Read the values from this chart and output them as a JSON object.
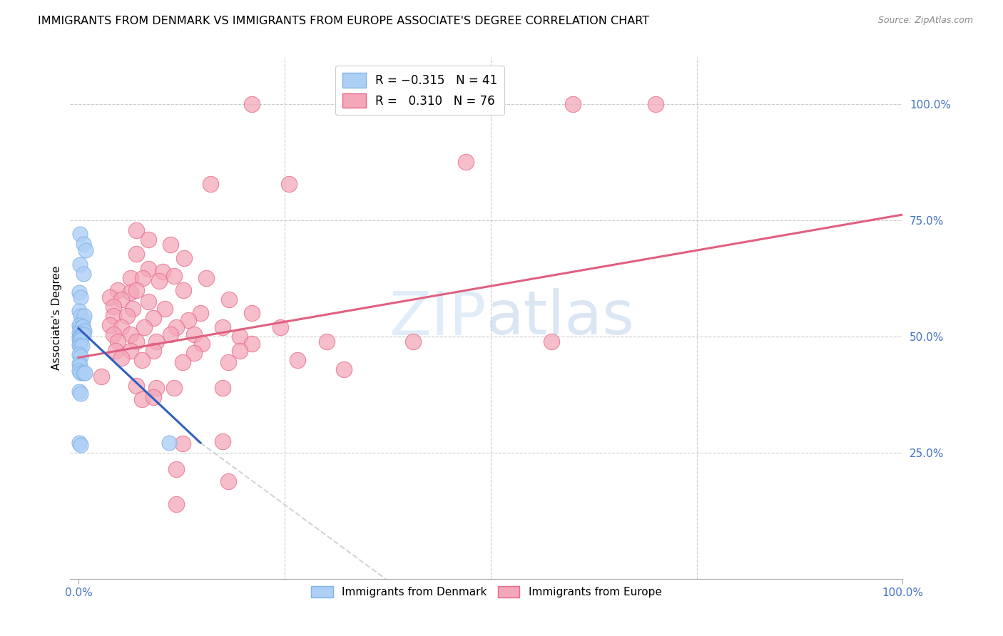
{
  "title": "IMMIGRANTS FROM DENMARK VS IMMIGRANTS FROM EUROPE ASSOCIATE'S DEGREE CORRELATION CHART",
  "source_text": "Source: ZipAtlas.com",
  "ylabel": "Associate's Degree",
  "ytick_labels": [
    "25.0%",
    "50.0%",
    "75.0%",
    "100.0%"
  ],
  "ytick_values": [
    0.25,
    0.5,
    0.75,
    1.0
  ],
  "xlim": [
    -0.01,
    1.0
  ],
  "ylim": [
    -0.02,
    1.1
  ],
  "blue_scatter": [
    [
      0.002,
      0.72
    ],
    [
      0.006,
      0.7
    ],
    [
      0.009,
      0.685
    ],
    [
      0.002,
      0.655
    ],
    [
      0.006,
      0.635
    ],
    [
      0.001,
      0.595
    ],
    [
      0.003,
      0.585
    ],
    [
      0.001,
      0.555
    ],
    [
      0.003,
      0.545
    ],
    [
      0.005,
      0.535
    ],
    [
      0.007,
      0.545
    ],
    [
      0.001,
      0.525
    ],
    [
      0.002,
      0.518
    ],
    [
      0.004,
      0.518
    ],
    [
      0.005,
      0.522
    ],
    [
      0.007,
      0.512
    ],
    [
      0.001,
      0.508
    ],
    [
      0.002,
      0.502
    ],
    [
      0.003,
      0.502
    ],
    [
      0.004,
      0.502
    ],
    [
      0.006,
      0.505
    ],
    [
      0.001,
      0.496
    ],
    [
      0.002,
      0.492
    ],
    [
      0.003,
      0.492
    ],
    [
      0.001,
      0.482
    ],
    [
      0.002,
      0.478
    ],
    [
      0.004,
      0.48
    ],
    [
      0.001,
      0.462
    ],
    [
      0.003,
      0.458
    ],
    [
      0.001,
      0.442
    ],
    [
      0.002,
      0.437
    ],
    [
      0.001,
      0.427
    ],
    [
      0.003,
      0.422
    ],
    [
      0.006,
      0.422
    ],
    [
      0.008,
      0.422
    ],
    [
      0.001,
      0.382
    ],
    [
      0.003,
      0.378
    ],
    [
      0.001,
      0.272
    ],
    [
      0.003,
      0.268
    ],
    [
      0.11,
      0.272
    ]
  ],
  "pink_scatter": [
    [
      0.21,
      1.0
    ],
    [
      0.6,
      1.0
    ],
    [
      0.7,
      1.0
    ],
    [
      0.47,
      0.875
    ],
    [
      0.16,
      0.828
    ],
    [
      0.255,
      0.828
    ],
    [
      0.07,
      0.728
    ],
    [
      0.085,
      0.708
    ],
    [
      0.112,
      0.698
    ],
    [
      0.07,
      0.678
    ],
    [
      0.128,
      0.668
    ],
    [
      0.085,
      0.645
    ],
    [
      0.102,
      0.64
    ],
    [
      0.116,
      0.63
    ],
    [
      0.063,
      0.625
    ],
    [
      0.078,
      0.625
    ],
    [
      0.098,
      0.62
    ],
    [
      0.155,
      0.625
    ],
    [
      0.048,
      0.6
    ],
    [
      0.063,
      0.595
    ],
    [
      0.07,
      0.6
    ],
    [
      0.127,
      0.6
    ],
    [
      0.038,
      0.585
    ],
    [
      0.052,
      0.58
    ],
    [
      0.085,
      0.575
    ],
    [
      0.183,
      0.58
    ],
    [
      0.042,
      0.565
    ],
    [
      0.066,
      0.56
    ],
    [
      0.105,
      0.56
    ],
    [
      0.148,
      0.55
    ],
    [
      0.21,
      0.55
    ],
    [
      0.042,
      0.545
    ],
    [
      0.059,
      0.545
    ],
    [
      0.091,
      0.54
    ],
    [
      0.133,
      0.535
    ],
    [
      0.038,
      0.525
    ],
    [
      0.052,
      0.52
    ],
    [
      0.08,
      0.52
    ],
    [
      0.119,
      0.52
    ],
    [
      0.175,
      0.52
    ],
    [
      0.245,
      0.52
    ],
    [
      0.042,
      0.505
    ],
    [
      0.063,
      0.505
    ],
    [
      0.112,
      0.505
    ],
    [
      0.14,
      0.505
    ],
    [
      0.196,
      0.5
    ],
    [
      0.048,
      0.49
    ],
    [
      0.07,
      0.49
    ],
    [
      0.094,
      0.49
    ],
    [
      0.15,
      0.485
    ],
    [
      0.21,
      0.485
    ],
    [
      0.301,
      0.49
    ],
    [
      0.045,
      0.47
    ],
    [
      0.063,
      0.47
    ],
    [
      0.091,
      0.47
    ],
    [
      0.14,
      0.465
    ],
    [
      0.196,
      0.47
    ],
    [
      0.052,
      0.455
    ],
    [
      0.077,
      0.45
    ],
    [
      0.126,
      0.445
    ],
    [
      0.182,
      0.445
    ],
    [
      0.266,
      0.45
    ],
    [
      0.028,
      0.415
    ],
    [
      0.07,
      0.395
    ],
    [
      0.094,
      0.39
    ],
    [
      0.116,
      0.39
    ],
    [
      0.175,
      0.39
    ],
    [
      0.077,
      0.365
    ],
    [
      0.091,
      0.37
    ],
    [
      0.126,
      0.27
    ],
    [
      0.175,
      0.275
    ],
    [
      0.119,
      0.215
    ],
    [
      0.182,
      0.19
    ],
    [
      0.119,
      0.14
    ],
    [
      0.406,
      0.49
    ],
    [
      0.574,
      0.49
    ],
    [
      0.322,
      0.43
    ]
  ],
  "blue_line_x": [
    0.0,
    0.148
  ],
  "blue_line_y": [
    0.518,
    0.272
  ],
  "dash_line_x": [
    0.148,
    0.38
  ],
  "dash_line_y": [
    0.272,
    -0.03
  ],
  "pink_line_x": [
    0.0,
    1.0
  ],
  "pink_line_y": [
    0.455,
    0.762
  ],
  "blue_color": "#7eb3e8",
  "blue_scatter_color": "#aecff5",
  "pink_color": "#e8698a",
  "pink_scatter_color": "#f4a7b9",
  "blue_line_color": "#3060c0",
  "pink_line_color": "#e06080",
  "dash_color": "#c8c8d8",
  "grid_color": "#cccccc",
  "title_fontsize": 11.5,
  "axis_label_fontsize": 11,
  "tick_fontsize": 11
}
